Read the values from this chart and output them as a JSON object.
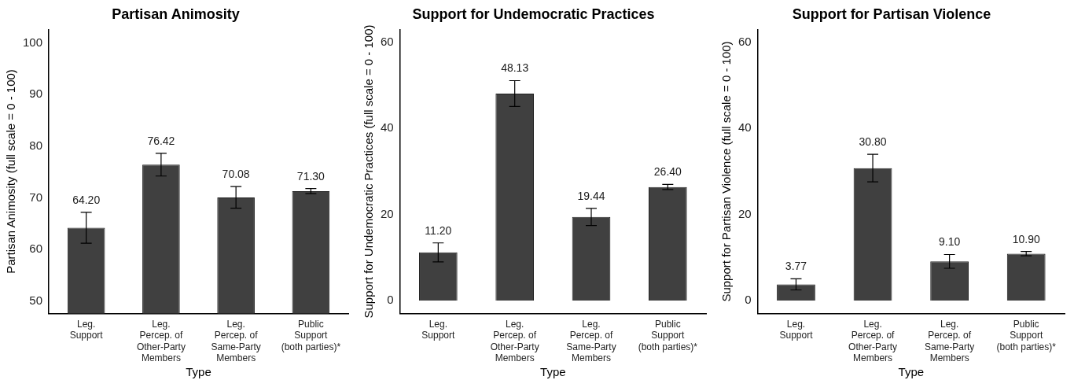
{
  "chart_data": [
    {
      "type": "bar",
      "title": "Partisan Animosity",
      "xlabel": "Type",
      "ylabel": "Partisan Animosity (full scale = 0 - 100)",
      "categories": [
        "Leg.\nSupport",
        "Leg.\nPercep. of\nOther-Party\nMembers",
        "Leg.\nPercep. of\nSame-Party\nMembers",
        "Public\nSupport\n(both parties)*"
      ],
      "values": [
        64.2,
        76.42,
        70.08,
        71.3
      ],
      "errors": [
        3.0,
        2.2,
        2.1,
        0.5
      ],
      "value_labels": [
        "64.20",
        "76.42",
        "70.08",
        "71.30"
      ],
      "color": "#404040",
      "ylim": [
        47.6,
        102.6
      ],
      "yticks": [
        50,
        60,
        70,
        80,
        90,
        100
      ],
      "grid": false,
      "legend": false
    },
    {
      "type": "bar",
      "title": "Support for Undemocratic Practices",
      "xlabel": "Type",
      "ylabel": "Support for Undemocratic Practices (full scale = 0 - 100)",
      "categories": [
        "Leg.\nSupport",
        "Leg.\nPercep. of\nOther-Party\nMembers",
        "Leg.\nPercep. of\nSame-Party\nMembers",
        "Public\nSupport\n(both parties)*"
      ],
      "values": [
        11.2,
        48.13,
        19.44,
        26.4
      ],
      "errors": [
        2.2,
        3.0,
        2.0,
        0.6
      ],
      "value_labels": [
        "11.20",
        "48.13",
        "19.44",
        "26.40"
      ],
      "color": "#404040",
      "ylim": [
        -3,
        63
      ],
      "yticks": [
        0,
        20,
        40,
        60
      ],
      "grid": false,
      "legend": false
    },
    {
      "type": "bar",
      "title": "Support for Partisan Violence",
      "xlabel": "Type",
      "ylabel": "Support for Partisan Violence (full scale = 0 - 100)",
      "categories": [
        "Leg.\nSupport",
        "Leg.\nPercep. of\nOther-Party\nMembers",
        "Leg.\nPercep. of\nSame-Party\nMembers",
        "Public\nSupport\n(both parties)*"
      ],
      "values": [
        3.77,
        30.8,
        9.1,
        10.9
      ],
      "errors": [
        1.3,
        3.2,
        1.6,
        0.5
      ],
      "value_labels": [
        "3.77",
        "30.80",
        "9.10",
        "10.90"
      ],
      "color": "#404040",
      "ylim": [
        -3,
        63
      ],
      "yticks": [
        0,
        20,
        40,
        60
      ],
      "grid": false,
      "legend": false
    }
  ]
}
